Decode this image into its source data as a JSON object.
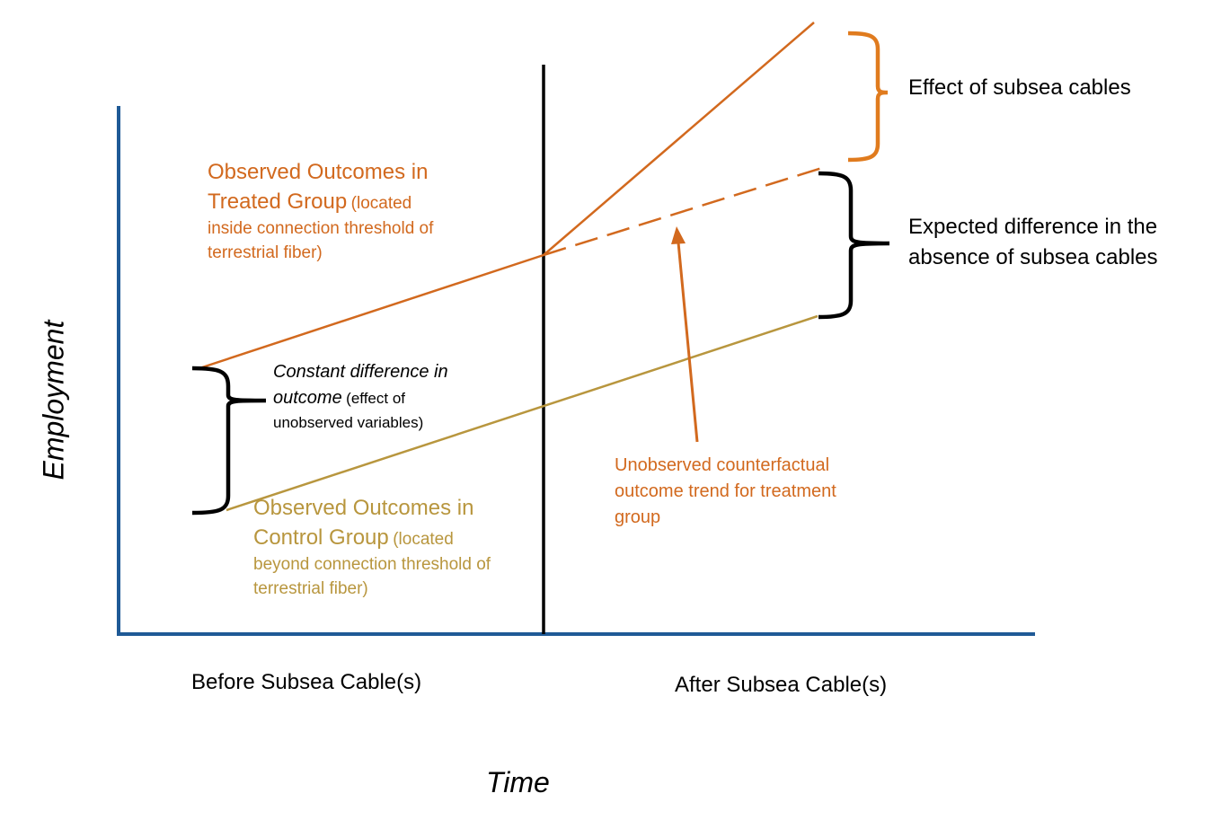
{
  "axes": {
    "y_label": "Employment",
    "x_label": "Time",
    "before_label": "Before Subsea Cable(s)",
    "after_label": "After Subsea Cable(s)"
  },
  "treated": {
    "title_1": "Observed Outcomes in",
    "title_2": "Treated Group",
    "note_2": "(located",
    "note_3": "inside connection threshold of",
    "note_4": "terrestrial fiber)"
  },
  "control": {
    "title_1": "Observed Outcomes in",
    "title_2": "Control Group",
    "note_2": "(located",
    "note_3": "beyond connection threshold of",
    "note_4": "terrestrial fiber)"
  },
  "constant_diff": {
    "line_1": "Constant difference in",
    "line_2_italic": "outcome",
    "line_2_rest": "(effect of",
    "line_3": "unobserved variables)"
  },
  "effect_label": "Effect of subsea cables",
  "expected_diff": {
    "line_1": "Expected difference in the",
    "line_2": "absence of subsea cables"
  },
  "counterfactual": {
    "line_1": "Unobserved counterfactual",
    "line_2": "outcome trend for treatment",
    "line_3": "group"
  },
  "colors": {
    "axis": "#1f5a96",
    "treated": "#d2691e",
    "control": "#b8963e",
    "divider": "#000000"
  }
}
